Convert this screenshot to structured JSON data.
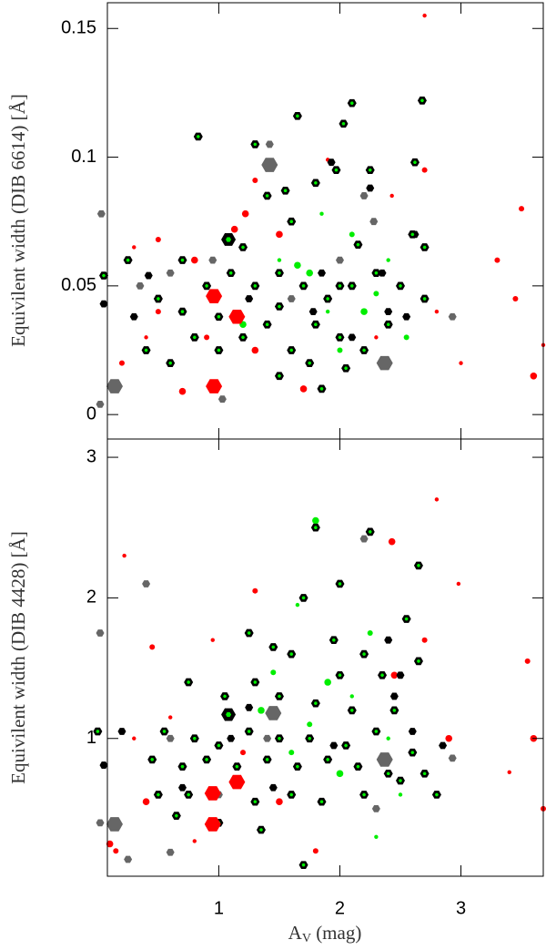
{
  "chart_data": [
    {
      "type": "scatter",
      "ylabel": "Equivilent width (DIB 6614) [Å]",
      "xlim": [
        0.08,
        3.68
      ],
      "xticks": [
        1,
        2,
        3
      ],
      "ylim": [
        -0.0095,
        0.16
      ],
      "yticks": [
        0,
        0.05,
        0.1,
        0.15
      ],
      "series": [
        {
          "marker": "dot",
          "color": "#ff0000",
          "x": [
            2.7,
            3.45,
            3.6,
            3.68,
            2.7,
            1.22,
            2.43,
            1.3,
            1.13,
            0.3,
            0.5,
            0.8,
            1.9,
            3.3,
            0.7,
            2.3,
            0.2,
            1.7,
            3.0,
            0.5,
            1.5,
            2.8,
            0.9,
            1.3,
            0.4,
            3.5
          ],
          "values": [
            0.155,
            0.045,
            0.015,
            0.027,
            0.095,
            0.078,
            0.085,
            0.091,
            0.072,
            0.065,
            0.068,
            0.06,
            0.099,
            0.06,
            0.009,
            0.03,
            0.02,
            0.01,
            0.02,
            0.04,
            0.07,
            0.04,
            0.03,
            0.025,
            0.03,
            0.08
          ]
        },
        {
          "marker": "dot",
          "color": "#00ee00",
          "x": [
            1.9,
            2.3,
            1.75,
            2.4,
            2.1,
            2.2,
            1.5,
            2.55,
            1.2,
            1.85,
            2.0,
            1.65
          ],
          "values": [
            0.04,
            0.047,
            0.055,
            0.06,
            0.07,
            0.04,
            0.06,
            0.03,
            0.035,
            0.078,
            0.025,
            0.058
          ]
        },
        {
          "marker": "hexagon",
          "color": "#666666",
          "x": [
            0.03,
            0.02,
            1.03,
            0.35,
            1.42,
            2.2,
            2.93,
            2.28,
            0.6,
            1.6,
            2.0,
            0.95
          ],
          "values": [
            0.078,
            0.004,
            0.006,
            0.05,
            0.105,
            0.085,
            0.038,
            0.075,
            0.055,
            0.045,
            0.06,
            0.06
          ]
        },
        {
          "marker": "hexagon",
          "color": "#000000",
          "x": [
            0.05,
            0.42,
            0.3,
            2.62,
            2.55,
            1.78,
            2.1,
            2.4,
            2.35,
            1.25,
            1.85,
            2.25,
            1.93
          ],
          "values": [
            0.043,
            0.054,
            0.038,
            0.07,
            0.038,
            0.04,
            0.03,
            0.04,
            0.055,
            0.045,
            0.055,
            0.088,
            0.098
          ]
        },
        {
          "marker": "ringed-hexagon",
          "color": "#000000",
          "ring_color": "#00ee00",
          "x": [
            0.83,
            1.3,
            1.65,
            2.03,
            2.1,
            2.68,
            2.62,
            1.97,
            1.8,
            2.25,
            1.55,
            1.4,
            0.05,
            0.25,
            0.5,
            0.7,
            0.9,
            1.1,
            1.3,
            1.5,
            1.7,
            1.9,
            2.1,
            2.3,
            2.5,
            2.7,
            0.4,
            0.6,
            0.8,
            1.0,
            1.2,
            1.4,
            1.6,
            1.8,
            2.0,
            2.2,
            2.4,
            0.7,
            1.0,
            1.5,
            2.0,
            1.75,
            1.5,
            1.85,
            2.05,
            2.6,
            2.7,
            1.2,
            1.6,
            2.15
          ],
          "values": [
            0.108,
            0.105,
            0.116,
            0.113,
            0.121,
            0.122,
            0.098,
            0.095,
            0.09,
            0.095,
            0.087,
            0.085,
            0.054,
            0.06,
            0.045,
            0.06,
            0.05,
            0.055,
            0.05,
            0.055,
            0.05,
            0.045,
            0.05,
            0.055,
            0.05,
            0.045,
            0.025,
            0.02,
            0.03,
            0.025,
            0.03,
            0.035,
            0.025,
            0.035,
            0.03,
            0.025,
            0.035,
            0.04,
            0.038,
            0.042,
            0.05,
            0.02,
            0.015,
            0.01,
            0.018,
            0.07,
            0.065,
            0.065,
            0.075,
            0.066
          ]
        },
        {
          "marker": "big-hexagon",
          "color": "#ff0000",
          "x": [
            0.96,
            1.15,
            0.96
          ],
          "values": [
            0.046,
            0.038,
            0.011
          ]
        },
        {
          "marker": "big-hexagon",
          "color": "#666666",
          "x": [
            1.42,
            0.14,
            2.37
          ],
          "values": [
            0.097,
            0.011,
            0.02
          ]
        },
        {
          "marker": "big-ringed-hexagon",
          "color": "#000000",
          "ring_color": "#00ee00",
          "x": [
            1.08
          ],
          "values": [
            0.068
          ]
        }
      ]
    },
    {
      "type": "scatter",
      "ylabel": "Equivilent width (DIB 4428) [Å]",
      "xlabel": {
        "text": "A",
        "subscript": "V",
        "suffix": " (mag)"
      },
      "xlim": [
        0.08,
        3.68
      ],
      "xticks": [
        1,
        2,
        3
      ],
      "ylim": [
        0.02,
        3.13
      ],
      "yticks": [
        1,
        2,
        3
      ],
      "series": [
        {
          "marker": "dot",
          "color": "#ff0000",
          "x": [
            0.22,
            1.3,
            2.43,
            2.98,
            3.55,
            3.6,
            3.4,
            3.68,
            2.45,
            0.95,
            0.45,
            0.4,
            0.8,
            0.15,
            2.9,
            0.6,
            1.8,
            1.5,
            0.3,
            2.7,
            0.1,
            2.8,
            1.2
          ],
          "values": [
            2.3,
            2.05,
            2.4,
            2.1,
            1.55,
            1.0,
            0.76,
            0.5,
            1.45,
            1.7,
            1.65,
            0.55,
            0.27,
            0.2,
            1.0,
            1.15,
            0.2,
            0.55,
            1.0,
            1.7,
            0.25,
            2.7,
            0.9
          ]
        },
        {
          "marker": "dot",
          "color": "#00ee00",
          "x": [
            1.65,
            2.25,
            1.9,
            2.1,
            1.75,
            1.35,
            2.4,
            1.6,
            2.0,
            2.5,
            1.45,
            1.8,
            2.3
          ],
          "values": [
            1.95,
            1.75,
            1.4,
            1.3,
            1.1,
            1.2,
            1.0,
            0.9,
            0.75,
            0.6,
            1.47,
            2.55,
            0.3
          ]
        },
        {
          "marker": "hexagon",
          "color": "#666666",
          "x": [
            0.02,
            0.4,
            0.02,
            2.2,
            2.93,
            0.25,
            0.6,
            1.0,
            2.3,
            0.6,
            1.4
          ],
          "values": [
            1.75,
            2.1,
            0.4,
            2.42,
            0.86,
            0.14,
            0.19,
            0.6,
            0.5,
            1.0,
            1.0
          ]
        },
        {
          "marker": "hexagon",
          "color": "#000000",
          "x": [
            0.05,
            0.2,
            1.25,
            2.45,
            2.6,
            2.4,
            2.5,
            1.45,
            1.95,
            2.85,
            0.7,
            1.1
          ],
          "values": [
            0.81,
            1.05,
            1.22,
            1.3,
            1.05,
            1.7,
            1.45,
            0.65,
            0.95,
            0.95,
            0.65,
            1.0
          ]
        },
        {
          "marker": "ringed-hexagon",
          "color": "#000000",
          "ring_color": "#00ee00",
          "x": [
            1.8,
            2.25,
            2.65,
            2.0,
            1.7,
            2.55,
            2.65,
            1.25,
            1.45,
            1.95,
            2.2,
            1.6,
            2.0,
            2.35,
            0.75,
            1.05,
            1.3,
            1.5,
            1.8,
            2.1,
            2.45,
            0.55,
            0.8,
            1.0,
            1.25,
            1.5,
            1.75,
            2.05,
            2.3,
            2.6,
            0.45,
            0.7,
            0.9,
            1.15,
            1.4,
            1.65,
            1.9,
            2.15,
            2.4,
            2.7,
            0.5,
            0.75,
            1.3,
            1.6,
            1.85,
            2.2,
            2.5,
            2.8,
            0.65,
            1.7,
            1.0,
            0.0,
            1.35
          ],
          "values": [
            2.5,
            2.47,
            2.23,
            2.1,
            2.0,
            1.85,
            1.55,
            1.75,
            1.65,
            1.7,
            1.6,
            1.6,
            1.45,
            1.45,
            1.4,
            1.3,
            1.4,
            1.3,
            1.25,
            1.2,
            1.2,
            1.05,
            1.0,
            0.95,
            1.05,
            1.0,
            1.0,
            0.95,
            1.05,
            0.9,
            0.85,
            0.8,
            0.85,
            0.8,
            0.85,
            0.8,
            0.85,
            0.8,
            0.75,
            0.75,
            0.6,
            0.6,
            0.55,
            0.6,
            0.55,
            0.6,
            0.7,
            0.6,
            0.45,
            0.1,
            0.4,
            1.05,
            0.35
          ]
        },
        {
          "marker": "big-hexagon",
          "color": "#ff0000",
          "x": [
            0.95,
            1.15,
            0.95
          ],
          "values": [
            0.61,
            0.69,
            0.39
          ]
        },
        {
          "marker": "big-hexagon",
          "color": "#666666",
          "x": [
            0.14,
            1.45,
            2.37
          ],
          "values": [
            0.39,
            1.18,
            0.85
          ]
        },
        {
          "marker": "big-ringed-hexagon",
          "color": "#000000",
          "ring_color": "#00ee00",
          "x": [
            1.08
          ],
          "values": [
            1.17
          ]
        }
      ]
    }
  ]
}
